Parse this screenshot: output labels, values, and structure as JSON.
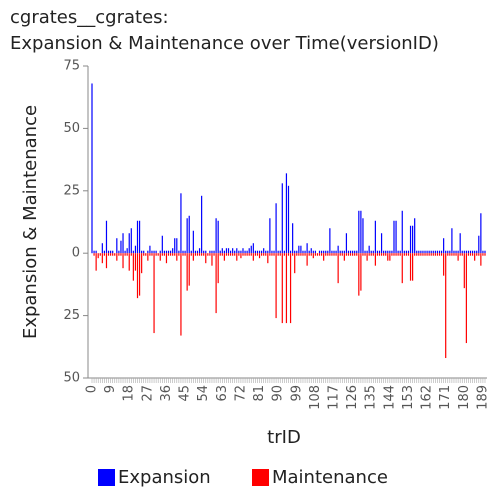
{
  "chart_data": {
    "type": "bar",
    "title": [
      "cgrates__cgrates:",
      "Expansion & Maintenance over Time(versionID)"
    ],
    "xlabel": "trID",
    "ylabel": "Expansion & Maintenance",
    "ylim": [
      -50,
      75
    ],
    "yticks": [
      {
        "value": -50,
        "label": "50"
      },
      {
        "value": -25,
        "label": "25"
      },
      0,
      25,
      50,
      75
    ],
    "legend": "bottom",
    "categories": [
      0,
      null,
      null,
      null,
      null,
      null,
      null,
      null,
      null,
      9,
      null,
      null,
      null,
      null,
      null,
      null,
      null,
      null,
      18,
      null,
      null,
      null,
      null,
      null,
      null,
      null,
      null,
      27,
      null,
      null,
      null,
      null,
      null,
      null,
      null,
      null,
      36,
      null,
      null,
      null,
      null,
      null,
      null,
      null,
      null,
      45,
      null,
      null,
      null,
      null,
      null,
      null,
      null,
      null,
      54,
      null,
      null,
      null,
      null,
      null,
      null,
      null,
      null,
      63,
      null,
      null,
      null,
      null,
      null,
      null,
      null,
      null,
      72,
      null,
      null,
      null,
      null,
      null,
      null,
      null,
      null,
      81,
      null,
      null,
      null,
      null,
      null,
      null,
      null,
      null,
      90,
      null,
      null,
      null,
      null,
      null,
      null,
      null,
      null,
      99,
      null,
      null,
      null,
      null,
      null,
      null,
      null,
      null,
      108,
      null,
      null,
      null,
      null,
      null,
      null,
      null,
      null,
      117,
      null,
      null,
      null,
      null,
      null,
      null,
      null,
      null,
      126,
      null,
      null,
      null,
      null,
      null,
      null,
      null,
      null,
      135,
      null,
      null,
      null,
      null,
      null,
      null,
      null,
      null,
      144,
      null,
      null,
      null,
      null,
      null,
      null,
      null,
      null,
      153,
      null,
      null,
      null,
      null,
      null,
      null,
      null,
      null,
      162,
      null,
      null,
      null,
      null,
      null,
      null,
      null,
      null,
      171,
      null,
      null,
      null,
      null,
      null,
      null,
      null,
      null,
      180,
      null,
      null,
      null,
      null,
      null,
      null,
      null,
      null,
      189,
      null
    ],
    "series": [
      {
        "name": "Expansion",
        "color": "#0000ff",
        "values": [
          68,
          1,
          1,
          0,
          0,
          4,
          1,
          13,
          1,
          1,
          1,
          0,
          6,
          1,
          5,
          8,
          1,
          2,
          8,
          10,
          1,
          3,
          13,
          13,
          1,
          1,
          0,
          1,
          3,
          1,
          1,
          1,
          0,
          1,
          7,
          1,
          1,
          1,
          1,
          2,
          6,
          6,
          1,
          24,
          1,
          1,
          14,
          15,
          1,
          9,
          1,
          1,
          2,
          23,
          1,
          1,
          0,
          1,
          1,
          1,
          14,
          13,
          1,
          2,
          1,
          2,
          2,
          1,
          2,
          1,
          2,
          1,
          1,
          2,
          1,
          1,
          2,
          3,
          4,
          1,
          1,
          1,
          1,
          2,
          1,
          1,
          14,
          1,
          1,
          20,
          1,
          1,
          28,
          1,
          32,
          27,
          1,
          12,
          1,
          1,
          3,
          3,
          1,
          1,
          4,
          1,
          2,
          1,
          1,
          0,
          1,
          1,
          1,
          1,
          1,
          10,
          1,
          1,
          1,
          3,
          1,
          1,
          1,
          8,
          1,
          1,
          1,
          1,
          1,
          17,
          17,
          14,
          1,
          1,
          3,
          1,
          1,
          13,
          1,
          1,
          8,
          1,
          1,
          1,
          1,
          1,
          13,
          13,
          1,
          1,
          17,
          1,
          1,
          1,
          11,
          11,
          14,
          1,
          1,
          1,
          1,
          1,
          1,
          1,
          1,
          1,
          1,
          1,
          1,
          1,
          6,
          1,
          1,
          1,
          10,
          1,
          1,
          1,
          8,
          1,
          1,
          1,
          1,
          1,
          1,
          1,
          1,
          7,
          16,
          1,
          1
        ]
      },
      {
        "name": "Maintenance",
        "color": "#ff0000",
        "values": [
          0,
          -1,
          -7,
          -2,
          -1,
          -4,
          -1,
          -6,
          -1,
          -1,
          -1,
          -1,
          -3,
          -1,
          -1,
          -6,
          -1,
          -1,
          -7,
          -1,
          -11,
          -7,
          -18,
          -17,
          -8,
          -1,
          -1,
          -3,
          -1,
          -1,
          -32,
          -1,
          -1,
          -3,
          -1,
          -1,
          -4,
          -1,
          -1,
          -1,
          -1,
          -3,
          -1,
          -33,
          -1,
          -1,
          -15,
          -13,
          -1,
          -3,
          -1,
          -1,
          -1,
          -1,
          -1,
          -4,
          -1,
          -1,
          -5,
          -1,
          -24,
          -12,
          -1,
          -1,
          -3,
          -1,
          -1,
          -1,
          -1,
          -1,
          -3,
          -1,
          -2,
          -1,
          -1,
          -1,
          -1,
          -1,
          -3,
          -1,
          -1,
          -2,
          -1,
          -1,
          -1,
          -4,
          -1,
          -1,
          -1,
          -26,
          -1,
          -1,
          -28,
          -1,
          -28,
          -1,
          -28,
          -1,
          -8,
          -1,
          -1,
          -1,
          -1,
          -1,
          -5,
          -1,
          -1,
          -2,
          -1,
          -1,
          -1,
          -1,
          -3,
          -1,
          -1,
          -1,
          -1,
          -1,
          -1,
          -12,
          -1,
          -1,
          -3,
          -1,
          -1,
          -1,
          -1,
          -1,
          -1,
          -17,
          -15,
          -1,
          -1,
          -3,
          -1,
          -1,
          -1,
          -5,
          -1,
          -1,
          -1,
          -1,
          -1,
          -3,
          -3,
          -1,
          -1,
          -1,
          -1,
          -1,
          -12,
          -1,
          -1,
          -1,
          -11,
          -11,
          -1,
          -1,
          -1,
          -1,
          -1,
          -1,
          -1,
          -1,
          -1,
          -1,
          -1,
          -1,
          -1,
          -1,
          -9,
          -42,
          -1,
          -1,
          -1,
          -1,
          -1,
          -3,
          -1,
          -1,
          -14,
          -36,
          -1,
          -1,
          -1,
          -3,
          -1,
          -1,
          -5,
          -1,
          -1
        ]
      }
    ]
  }
}
